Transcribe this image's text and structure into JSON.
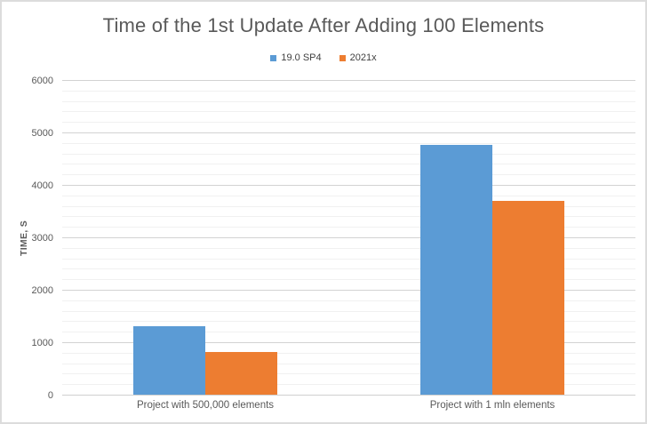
{
  "chart_data": {
    "type": "bar",
    "title": "Time of the 1st Update After Adding 100 Elements",
    "xlabel": "",
    "ylabel": "TIME, S",
    "categories": [
      "Project with 500,000 elements",
      "Project with 1 mln elements"
    ],
    "series": [
      {
        "name": "19.0 SP4",
        "color": "#5b9bd5",
        "values": [
          1300,
          4760
        ]
      },
      {
        "name": "2021x",
        "color": "#ed7d31",
        "values": [
          820,
          3700
        ]
      }
    ],
    "ylim": [
      0,
      6000
    ],
    "y_ticks": [
      0,
      1000,
      2000,
      3000,
      4000,
      5000,
      6000
    ],
    "y_major_step": 1000,
    "y_minor_step": 200,
    "grid": "horizontal major+minor, no vertical axis line",
    "legend_position": "top-center"
  },
  "style_colors": {
    "title_text": "#595959",
    "axis_text": "#595959",
    "major_gridline": "#d2d2d2",
    "minor_gridline": "#f0f0f0",
    "frame_border": "#dcdcdc",
    "background": "#ffffff"
  }
}
